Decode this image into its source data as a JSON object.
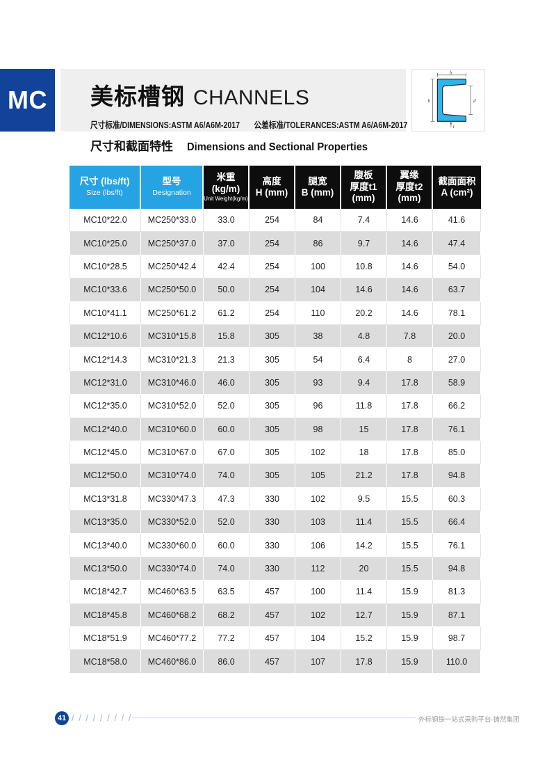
{
  "header": {
    "badge": "MC",
    "title_zh": "美标槽钢",
    "title_en": "CHANNELS",
    "standard_dimensions": "尺寸标准/DIMENSIONS:ASTM A6/A6M-2017",
    "standard_tolerances": "公差标准/TOLERANCES:ASTM A6/A6M-2017"
  },
  "diagram": {
    "labels": {
      "b": "b",
      "h": "h",
      "d": "d",
      "t": "t"
    }
  },
  "section": {
    "heading_zh": "尺寸和截面特性",
    "heading_en": "Dimensions and Sectional Properties"
  },
  "table": {
    "columns": [
      {
        "key": "size",
        "accent": true,
        "main": [
          "尺寸 (lbs/ft)"
        ],
        "sub": "Size (lbs/ft)"
      },
      {
        "key": "designation",
        "accent": true,
        "main": [
          "型号"
        ],
        "sub": "Designation"
      },
      {
        "key": "unit-weight",
        "accent": false,
        "main": [
          "米重",
          "(kg/m)"
        ],
        "tiny": "Unit Weight(kg/m)"
      },
      {
        "key": "height",
        "accent": false,
        "main": [
          "高度",
          "H (mm)"
        ]
      },
      {
        "key": "leg-width",
        "accent": false,
        "main": [
          "腿宽",
          "B (mm)"
        ]
      },
      {
        "key": "web-thickness",
        "accent": false,
        "main": [
          "腹板",
          "厚度t1",
          "(mm)"
        ]
      },
      {
        "key": "flange-thickness",
        "accent": false,
        "main": [
          "翼缘",
          "厚度t2",
          "(mm)"
        ]
      },
      {
        "key": "section-area",
        "accent": false,
        "main": [
          "截面面积",
          "A (cm²)"
        ]
      }
    ],
    "rows": [
      [
        "MC10*22.0",
        "MC250*33.0",
        "33.0",
        "254",
        "84",
        "7.4",
        "14.6",
        "41.6"
      ],
      [
        "MC10*25.0",
        "MC250*37.0",
        "37.0",
        "254",
        "86",
        "9.7",
        "14.6",
        "47.4"
      ],
      [
        "MC10*28.5",
        "MC250*42.4",
        "42.4",
        "254",
        "100",
        "10.8",
        "14.6",
        "54.0"
      ],
      [
        "MC10*33.6",
        "MC250*50.0",
        "50.0",
        "254",
        "104",
        "14.6",
        "14.6",
        "63.7"
      ],
      [
        "MC10*41.1",
        "MC250*61.2",
        "61.2",
        "254",
        "110",
        "20.2",
        "14.6",
        "78.1"
      ],
      [
        "MC12*10.6",
        "MC310*15.8",
        "15.8",
        "305",
        "38",
        "4.8",
        "7.8",
        "20.0"
      ],
      [
        "MC12*14.3",
        "MC310*21.3",
        "21.3",
        "305",
        "54",
        "6.4",
        "8",
        "27.0"
      ],
      [
        "MC12*31.0",
        "MC310*46.0",
        "46.0",
        "305",
        "93",
        "9.4",
        "17.8",
        "58.9"
      ],
      [
        "MC12*35.0",
        "MC310*52.0",
        "52.0",
        "305",
        "96",
        "11.8",
        "17.8",
        "66.2"
      ],
      [
        "MC12*40.0",
        "MC310*60.0",
        "60.0",
        "305",
        "98",
        "15",
        "17.8",
        "76.1"
      ],
      [
        "MC12*45.0",
        "MC310*67.0",
        "67.0",
        "305",
        "102",
        "18",
        "17.8",
        "85.0"
      ],
      [
        "MC12*50.0",
        "MC310*74.0",
        "74.0",
        "305",
        "105",
        "21.2",
        "17.8",
        "94.8"
      ],
      [
        "MC13*31.8",
        "MC330*47.3",
        "47.3",
        "330",
        "102",
        "9.5",
        "15.5",
        "60.3"
      ],
      [
        "MC13*35.0",
        "MC330*52.0",
        "52.0",
        "330",
        "103",
        "11.4",
        "15.5",
        "66.4"
      ],
      [
        "MC13*40.0",
        "MC330*60.0",
        "60.0",
        "330",
        "106",
        "14.2",
        "15.5",
        "76.1"
      ],
      [
        "MC13*50.0",
        "MC330*74.0",
        "74.0",
        "330",
        "112",
        "20",
        "15.5",
        "94.8"
      ],
      [
        "MC18*42.7",
        "MC460*63.5",
        "63.5",
        "457",
        "100",
        "11.4",
        "15.9",
        "81.3"
      ],
      [
        "MC18*45.8",
        "MC460*68.2",
        "68.2",
        "457",
        "102",
        "12.7",
        "15.9",
        "87.1"
      ],
      [
        "MC18*51.9",
        "MC460*77.2",
        "77.2",
        "457",
        "104",
        "15.2",
        "15.9",
        "98.7"
      ],
      [
        "MC18*58.0",
        "MC460*86.0",
        "86.0",
        "457",
        "107",
        "17.8",
        "15.9",
        "110.0"
      ]
    ]
  },
  "footer": {
    "page_number": "41",
    "slashes": "/ / / / / / / / /",
    "brand": "外标钢铁一站式采购平台-铸然集团"
  },
  "colors": {
    "badge_blue": "#12439a",
    "accent_blue": "#25a3e2",
    "header_black": "#0d0d0d",
    "row_alt_gray": "#dcdcdc",
    "diagram_fill": "#2fb3e8",
    "footer_line": "#c0cfe0"
  }
}
